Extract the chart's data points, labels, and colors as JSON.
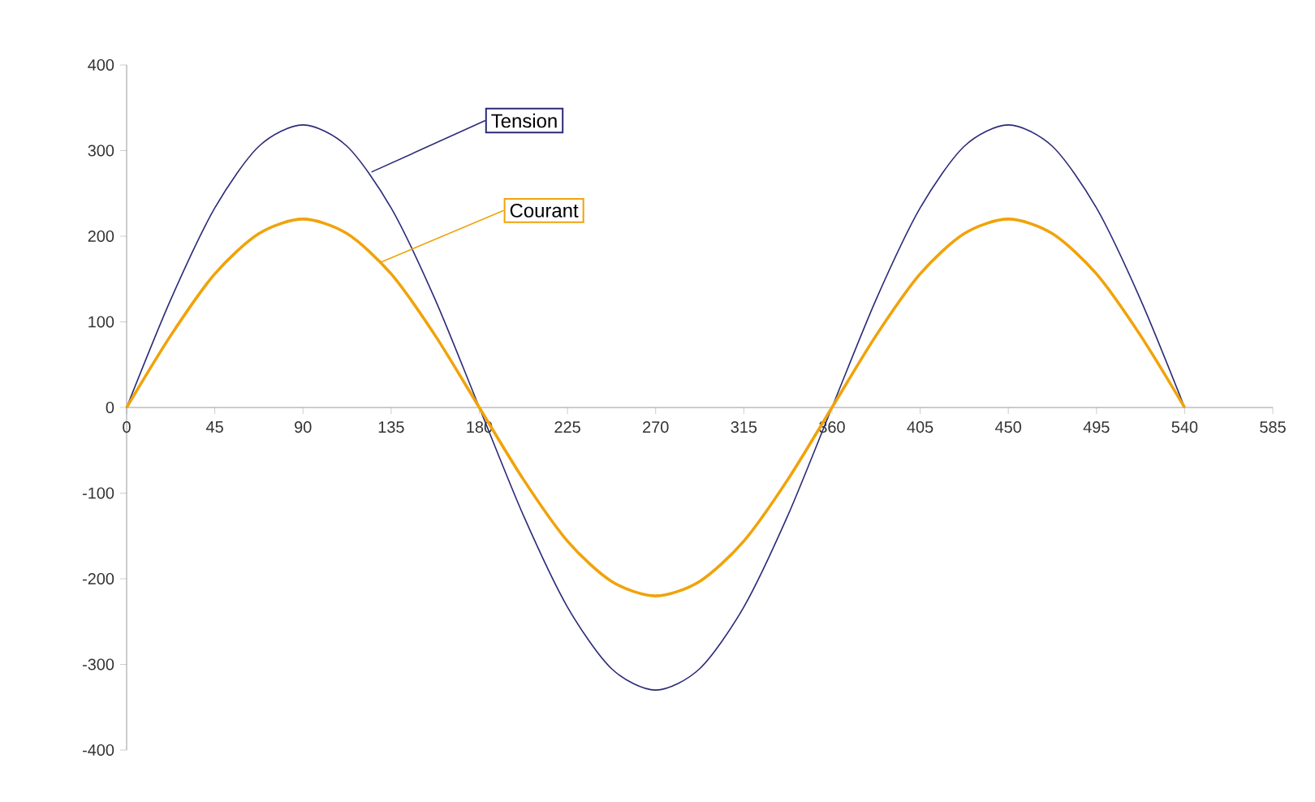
{
  "chart_data": {
    "type": "line",
    "x": [
      0,
      22.5,
      45,
      67.5,
      90,
      112.5,
      135,
      157.5,
      180,
      202.5,
      225,
      247.5,
      270,
      292.5,
      315,
      337.5,
      360,
      382.5,
      405,
      427.5,
      450,
      472.5,
      495,
      517.5,
      540
    ],
    "series": [
      {
        "name": "Tension",
        "color": "#2b2a78",
        "values": [
          0,
          126,
          233,
          305,
          330,
          305,
          233,
          126,
          0,
          -126,
          -233,
          -305,
          -330,
          -305,
          -233,
          -126,
          0,
          126,
          233,
          305,
          330,
          305,
          233,
          126,
          0
        ]
      },
      {
        "name": "Courant",
        "color": "#f0a30a",
        "values": [
          0,
          84,
          156,
          203,
          220,
          203,
          156,
          84,
          0,
          -84,
          -156,
          -203,
          -220,
          -203,
          -156,
          -84,
          0,
          84,
          156,
          203,
          220,
          203,
          156,
          84,
          0
        ]
      }
    ],
    "xlim": [
      0,
      585
    ],
    "xticks": [
      0,
      45,
      90,
      135,
      180,
      225,
      270,
      315,
      360,
      405,
      450,
      495,
      540,
      585
    ],
    "ylim": [
      -400,
      400
    ],
    "yticks": [
      -400,
      -300,
      -200,
      -100,
      0,
      100,
      200,
      300,
      400
    ],
    "grid": false,
    "marker": "none",
    "line_style": "solid"
  }
}
